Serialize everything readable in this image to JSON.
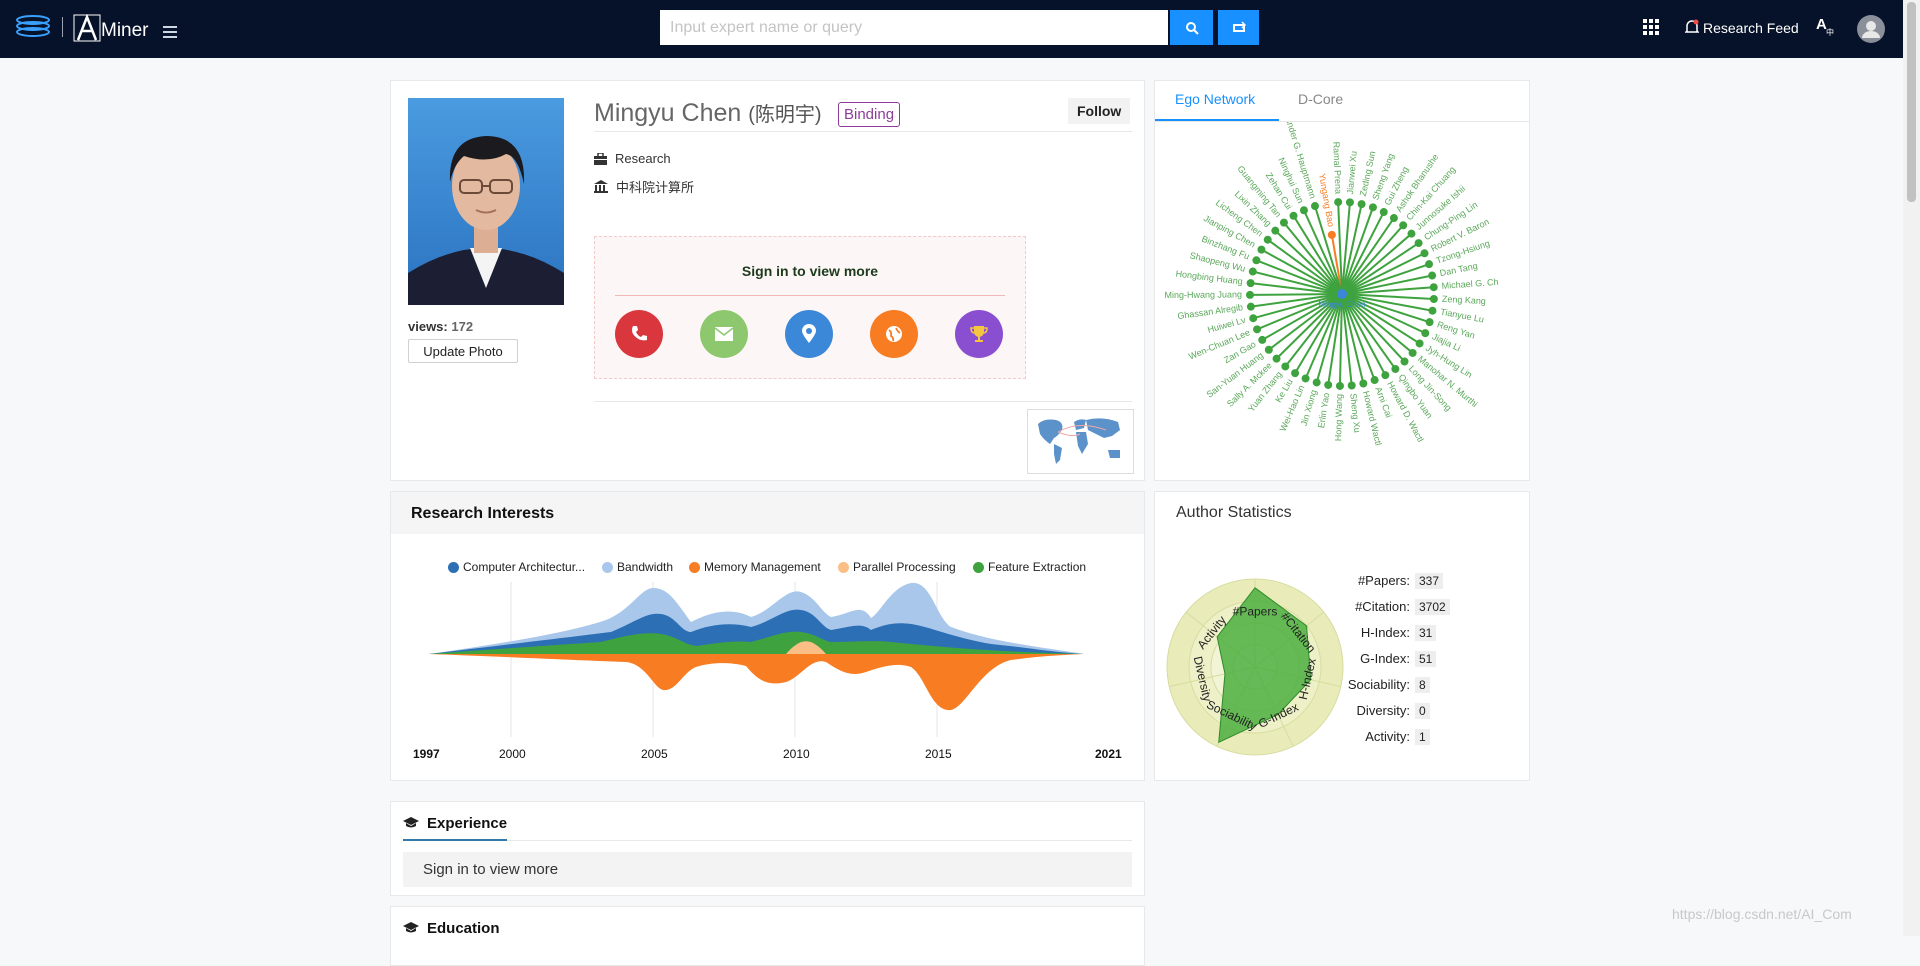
{
  "header": {
    "brand": "Miner",
    "search_placeholder": "Input expert name or query",
    "research_feed": "Research Feed"
  },
  "profile": {
    "name": "Mingyu Chen",
    "chinese_name": "(陈明宇)",
    "binding_label": "Binding",
    "follow_label": "Follow",
    "position": "Research",
    "organization": "中科院计算所",
    "views_label": "views:",
    "views_count": "172",
    "update_photo_label": "Update Photo",
    "sign_in_more": "Sign in to view more",
    "contact_icons": [
      "phone-icon",
      "email-icon",
      "location-icon",
      "globe-icon",
      "trophy-icon"
    ],
    "contact_colors": [
      "#d9363e",
      "#8dc86f",
      "#3b87d8",
      "#f77c22",
      "#8a4fd1"
    ]
  },
  "ego": {
    "tabs": [
      "Ego Network",
      "D-Core"
    ],
    "center": "Mingyu Chen",
    "highlight": "Yungang Bao",
    "names": [
      "Yungang Bao",
      "Ramal Prena",
      "Jianwei Xu",
      "Zeding Sun",
      "Sheng Yang",
      "Gui Zheng",
      "Ashok Bhanushe",
      "Chin-Kai Chuang",
      "Junnosuke Ishii",
      "Chung-Ping Lin",
      "Robert V. Baron",
      "Tzong-Hsiung",
      "Dan Tang",
      "Michael G. Ch",
      "Zeng Kang",
      "Tianyue Lu",
      "Reng Yan",
      "Jiajia Li",
      "Jyh-Hung Lin",
      "Manohar N. Murthi",
      "Long Jin-Song",
      "Qingbo Yuan",
      "Howard D. Wactl",
      "Arni Cai",
      "Howard Wactl",
      "Sheng Xu",
      "Hong Wang",
      "Erlin Yao",
      "Jin Xiong",
      "Wei-Hao Lin",
      "Ke Liu",
      "Yuan Zhang",
      "Sally A. Mckee",
      "San-Yuan Huang",
      "Zan Gao",
      "Wen-Chuan Lee",
      "Huiwei Lv",
      "Ghassan Alregib",
      "Ming-Hwang Juang",
      "Hongbing Huang",
      "Shaopeng Wu",
      "Binzhang Fu",
      "Jianping Chen",
      "Licheng Chen",
      "Lixin Zhang",
      "Guangming Tan",
      "Zehan Cui",
      "Ninghui Sun",
      "Alexander G. Hauptmann"
    ]
  },
  "interests": {
    "title": "Research Interests",
    "chart_data": {
      "type": "area",
      "title": "",
      "x": [
        1997,
        2000,
        2005,
        2010,
        2015,
        2021
      ],
      "series": [
        {
          "name": "Computer Architectur...",
          "color": "#2c6fb5"
        },
        {
          "name": "Bandwidth",
          "color": "#a9c7ea"
        },
        {
          "name": "Memory Management",
          "color": "#f77c22"
        },
        {
          "name": "Parallel Processing",
          "color": "#fbbf85"
        },
        {
          "name": "Feature Extraction",
          "color": "#3ea33e"
        }
      ]
    }
  },
  "stats": {
    "title": "Author Statistics",
    "items": [
      {
        "label": "#Papers:",
        "value": "337"
      },
      {
        "label": "#Citation:",
        "value": "3702"
      },
      {
        "label": "H-Index:",
        "value": "31"
      },
      {
        "label": "G-Index:",
        "value": "51"
      },
      {
        "label": "Sociability:",
        "value": "8"
      },
      {
        "label": "Diversity:",
        "value": "0"
      },
      {
        "label": "Activity:",
        "value": "1"
      }
    ],
    "radar_axes": [
      "#Papers",
      "#Citation",
      "H-Index",
      "G-Index",
      "Sociability",
      "Diversity",
      "Activity"
    ]
  },
  "sections": {
    "experience": "Experience",
    "experience_body": "Sign in to view more",
    "education": "Education"
  },
  "watermark": "https://blog.csdn.net/AI_Com"
}
